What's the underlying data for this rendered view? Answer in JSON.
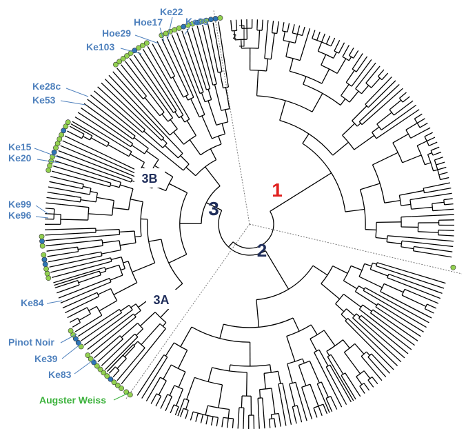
{
  "scale_bar": "2",
  "clusters": [
    "1",
    "2",
    "3",
    "3A",
    "3B"
  ],
  "samples": [
    "Ke22",
    "Hoe17",
    "Ke95",
    "Hoe29",
    "Ke103",
    "Ke28c",
    "Ke53",
    "Ke15",
    "Ke20",
    "Ke99",
    "Ke96",
    "Ke84",
    "Pinot Noir",
    "Ke39",
    "Ke83",
    "Augster Weiss"
  ]
}
